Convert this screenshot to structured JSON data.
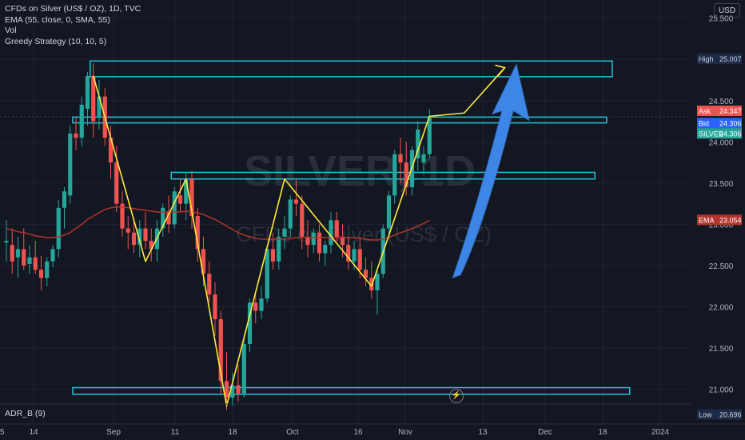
{
  "legend": {
    "title": "CFDs on Silver (US$ / OZ), 1D, TVC",
    "ema": "EMA (55, close, 0, SMA, 55)",
    "vol": "Vol",
    "strategy": "Greedy Strategy (10, 10, 5)"
  },
  "currency_button": "USD",
  "adr_label": "ADR_B (9)",
  "watermark": {
    "symbol": "SILVER, 1D",
    "description": "CFDs on Silver (US$ / OZ)"
  },
  "colors": {
    "background": "#131722",
    "bull": "#26a69a",
    "bear": "#ef5350",
    "ema_line": "#b2342c",
    "zigzag": "#ffeb3b",
    "zone_border": "#22c4d6",
    "arrow": "#3d86e6",
    "grid": "#1f2330"
  },
  "chart_data": {
    "type": "candlestick",
    "y_axis": {
      "min": 20.55,
      "max": 25.72,
      "ticks": [
        "25.500",
        "25.000",
        "24.500",
        "24.000",
        "23.500",
        "23.000",
        "22.500",
        "22.000",
        "21.500",
        "21.000"
      ]
    },
    "x_axis": {
      "ticks": [
        "14",
        "Sep",
        "11",
        "18",
        "Oct",
        "16",
        "Nov",
        "13",
        "Dec",
        "18",
        "2024",
        "15"
      ]
    },
    "grid": true,
    "candles": [
      [
        22.78,
        23.05,
        22.55,
        22.8
      ],
      [
        22.75,
        22.95,
        22.4,
        22.55
      ],
      [
        22.6,
        22.85,
        22.35,
        22.7
      ],
      [
        22.7,
        22.95,
        22.45,
        22.5
      ],
      [
        22.52,
        22.75,
        22.4,
        22.6
      ],
      [
        22.6,
        22.8,
        22.4,
        22.45
      ],
      [
        22.45,
        22.62,
        22.2,
        22.35
      ],
      [
        22.35,
        22.6,
        22.25,
        22.55
      ],
      [
        22.55,
        22.75,
        22.48,
        22.7
      ],
      [
        22.7,
        23.3,
        22.6,
        23.2
      ],
      [
        23.2,
        23.45,
        22.95,
        23.4
      ],
      [
        23.35,
        24.2,
        23.25,
        24.1
      ],
      [
        24.1,
        24.3,
        23.9,
        24.05
      ],
      [
        24.05,
        24.55,
        23.95,
        24.45
      ],
      [
        24.4,
        24.85,
        24.2,
        24.8
      ],
      [
        24.8,
        24.95,
        24.05,
        24.25
      ],
      [
        24.3,
        24.75,
        24.15,
        24.55
      ],
      [
        24.55,
        24.65,
        23.95,
        24.05
      ],
      [
        24.05,
        24.2,
        23.55,
        23.75
      ],
      [
        23.75,
        23.95,
        23.15,
        23.25
      ],
      [
        23.25,
        23.4,
        22.85,
        22.95
      ],
      [
        22.95,
        23.1,
        22.7,
        22.9
      ],
      [
        22.9,
        23.05,
        22.65,
        22.75
      ],
      [
        22.75,
        23.05,
        22.6,
        22.95
      ],
      [
        22.95,
        23.15,
        22.7,
        22.8
      ],
      [
        22.8,
        22.95,
        22.55,
        22.7
      ],
      [
        22.7,
        23.05,
        22.55,
        22.95
      ],
      [
        22.95,
        23.25,
        22.85,
        23.2
      ],
      [
        23.15,
        23.35,
        22.9,
        23.0
      ],
      [
        23.0,
        23.45,
        22.95,
        23.4
      ],
      [
        23.35,
        23.55,
        23.15,
        23.25
      ],
      [
        23.25,
        23.62,
        23.05,
        23.55
      ],
      [
        23.55,
        23.65,
        22.95,
        23.1
      ],
      [
        23.1,
        23.2,
        22.55,
        22.7
      ],
      [
        22.7,
        22.85,
        22.25,
        22.4
      ],
      [
        22.4,
        22.55,
        22.05,
        22.15
      ],
      [
        22.15,
        22.3,
        21.65,
        21.85
      ],
      [
        21.85,
        21.95,
        20.95,
        21.1
      ],
      [
        21.1,
        21.45,
        20.75,
        20.9
      ],
      [
        20.9,
        21.2,
        20.8,
        21.05
      ],
      [
        21.05,
        21.3,
        20.85,
        20.95
      ],
      [
        20.95,
        21.65,
        20.9,
        21.55
      ],
      [
        21.55,
        22.1,
        21.45,
        22.05
      ],
      [
        22.05,
        22.15,
        21.8,
        21.95
      ],
      [
        21.95,
        22.25,
        21.85,
        22.1
      ],
      [
        22.1,
        22.75,
        22.05,
        22.7
      ],
      [
        22.7,
        22.9,
        22.45,
        22.55
      ],
      [
        22.55,
        22.95,
        22.45,
        22.85
      ],
      [
        22.85,
        23.1,
        22.7,
        22.95
      ],
      [
        22.95,
        23.35,
        22.85,
        23.3
      ],
      [
        23.3,
        23.55,
        23.1,
        23.25
      ],
      [
        23.25,
        23.35,
        22.7,
        22.85
      ],
      [
        22.85,
        23.05,
        22.6,
        22.75
      ],
      [
        22.75,
        22.95,
        22.65,
        22.9
      ],
      [
        22.9,
        23.0,
        22.55,
        22.65
      ],
      [
        22.65,
        22.8,
        22.5,
        22.75
      ],
      [
        22.75,
        23.15,
        22.65,
        23.05
      ],
      [
        23.05,
        23.15,
        22.8,
        22.85
      ],
      [
        22.85,
        23.0,
        22.6,
        22.75
      ],
      [
        22.75,
        22.85,
        22.45,
        22.55
      ],
      [
        22.55,
        22.8,
        22.45,
        22.7
      ],
      [
        22.7,
        22.85,
        22.35,
        22.45
      ],
      [
        22.45,
        22.6,
        22.25,
        22.35
      ],
      [
        22.35,
        22.55,
        22.1,
        22.2
      ],
      [
        22.2,
        22.45,
        21.9,
        22.4
      ],
      [
        22.4,
        23.0,
        22.35,
        22.95
      ],
      [
        22.95,
        23.4,
        22.85,
        23.35
      ],
      [
        23.35,
        23.9,
        23.25,
        23.85
      ],
      [
        23.85,
        24.05,
        23.5,
        23.75
      ],
      [
        23.75,
        24.0,
        23.35,
        23.45
      ],
      [
        23.45,
        23.95,
        23.35,
        23.9
      ],
      [
        23.8,
        24.25,
        23.65,
        24.15
      ],
      [
        23.75,
        23.95,
        23.6,
        23.85
      ],
      [
        23.85,
        24.4,
        23.8,
        24.31
      ]
    ],
    "ema_values": [
      22.95,
      22.93,
      22.91,
      22.9,
      22.88,
      22.86,
      22.85,
      22.84,
      22.84,
      22.85,
      22.87,
      22.9,
      22.95,
      23.0,
      23.06,
      23.1,
      23.14,
      23.18,
      23.2,
      23.21,
      23.21,
      23.2,
      23.19,
      23.18,
      23.17,
      23.16,
      23.15,
      23.15,
      23.15,
      23.15,
      23.15,
      23.16,
      23.15,
      23.14,
      23.12,
      23.09,
      23.06,
      23.02,
      22.98,
      22.94,
      22.9,
      22.87,
      22.85,
      22.83,
      22.82,
      22.82,
      22.82,
      22.82,
      22.82,
      22.83,
      22.84,
      22.84,
      22.84,
      22.84,
      22.84,
      22.84,
      22.84,
      22.84,
      22.84,
      22.84,
      22.84,
      22.83,
      22.82,
      22.81,
      22.81,
      22.82,
      22.84,
      22.87,
      22.9,
      22.92,
      22.95,
      22.98,
      23.01,
      23.05
    ],
    "zigzag": [
      {
        "bar": 15,
        "price": 24.8
      },
      {
        "bar": 24,
        "price": 22.55
      },
      {
        "bar": 31,
        "price": 23.55
      },
      {
        "bar": 38,
        "price": 20.8
      },
      {
        "bar": 48,
        "price": 23.55
      },
      {
        "bar": 63,
        "price": 22.25
      },
      {
        "bar": 73,
        "price": 24.31
      },
      {
        "bar": 79,
        "price": 24.35
      },
      {
        "bar": 86,
        "price": 24.9
      }
    ],
    "zones": [
      {
        "from_bar": 15,
        "to_bar": 104,
        "top": 24.98,
        "bottom": 24.79
      },
      {
        "from_bar": 12,
        "to_bar": 103,
        "top": 24.3,
        "bottom": 24.23
      },
      {
        "from_bar": 29,
        "to_bar": 101,
        "top": 23.63,
        "bottom": 23.55
      },
      {
        "from_bar": 12,
        "to_bar": 107,
        "top": 21.02,
        "bottom": 20.94
      }
    ],
    "projection_arrow": {
      "from_bar": 77,
      "from_price": 22.35,
      "to_bar": 88,
      "to_price": 24.94
    },
    "price_labels": [
      {
        "name": "High",
        "value": "25.007",
        "price": 25.007,
        "color": "#1e2b48",
        "text_color": "#d1d4dc"
      },
      {
        "name": "Ask",
        "value": "24.347",
        "price": 24.347,
        "color": "#ef5350",
        "text_color": "#ffffff"
      },
      {
        "name": "Bid",
        "value": "24.306",
        "price": 24.306,
        "color": "#2962ff",
        "text_color": "#ffffff"
      },
      {
        "name": "SILVER",
        "value": "24.306",
        "price": 24.306,
        "color": "#26a69a",
        "text_color": "#ffffff"
      },
      {
        "name": "EMA",
        "value": "23.054",
        "price": 23.054,
        "color": "#b2342c",
        "text_color": "#ffffff"
      },
      {
        "name": "Low",
        "value": "20.696",
        "price": 20.696,
        "color": "#1e2b48",
        "text_color": "#d1d4dc"
      }
    ]
  }
}
